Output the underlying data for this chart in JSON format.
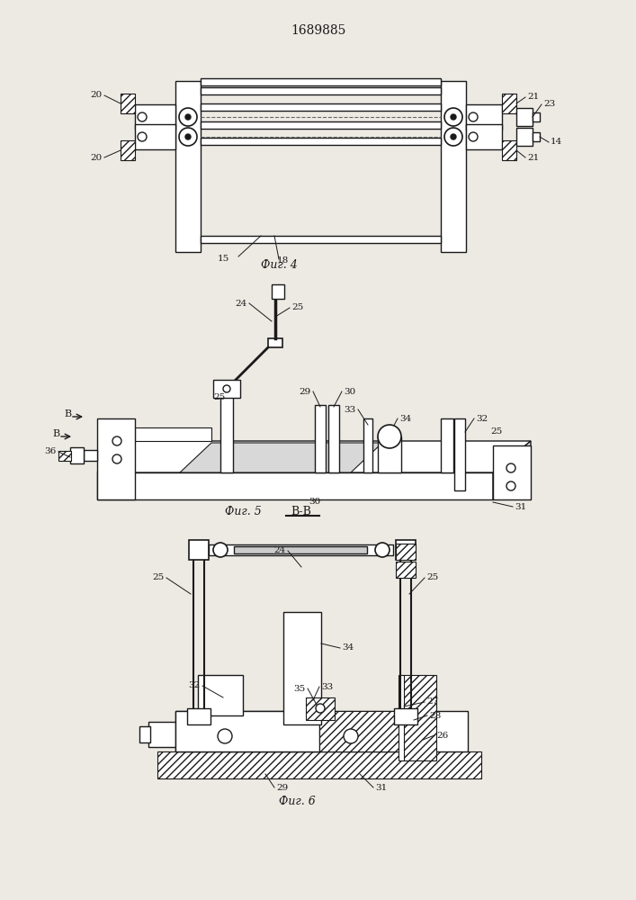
{
  "title": "1689885",
  "bg_color": "#ede9e3",
  "line_color": "#1a1a1a",
  "fig4_label": "Фиг. 4",
  "fig5_label": "Фиг. 5",
  "fig5_sub": "B-B",
  "fig6_label": "Фиг. 6"
}
